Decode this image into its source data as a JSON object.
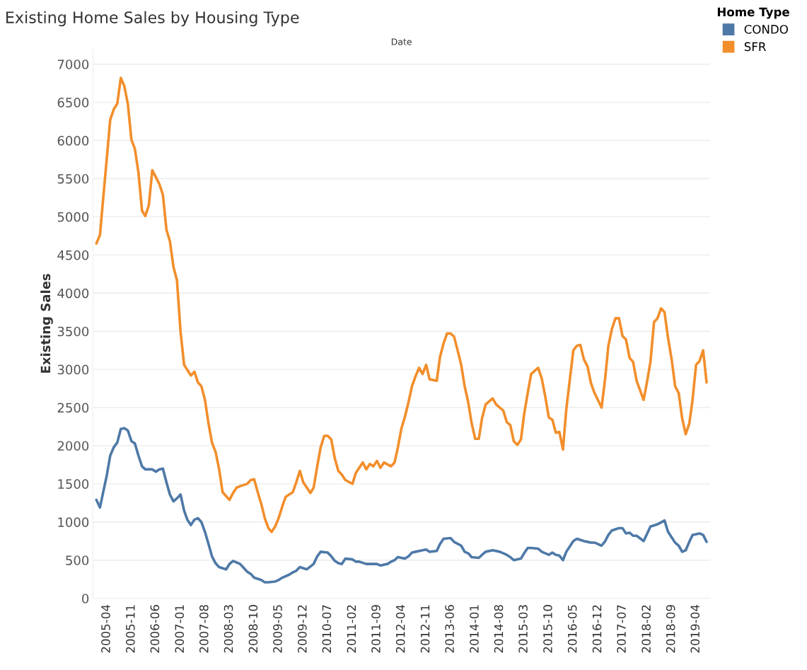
{
  "chart_data": {
    "type": "line",
    "title": "Existing Home Sales by Housing Type",
    "xlabel": "Date",
    "ylabel": "Existing Sales",
    "legend_title": "Home Type",
    "legend": "top right",
    "grid": "y",
    "marker": "none",
    "line_style": "solid",
    "ylim": [
      0,
      7200
    ],
    "yticks": [
      0,
      500,
      1000,
      1500,
      2000,
      2500,
      3000,
      3500,
      4000,
      4500,
      5000,
      5500,
      6000,
      6500,
      7000
    ],
    "xlim": [
      "2004-12",
      "2019-08"
    ],
    "xticks": [
      "2005-04",
      "2005-11",
      "2006-06",
      "2007-01",
      "2007-08",
      "2008-03",
      "2008-10",
      "2009-05",
      "2009-12",
      "2010-07",
      "2011-02",
      "2011-09",
      "2012-04",
      "2012-11",
      "2013-06",
      "2014-01",
      "2014-08",
      "2015-03",
      "2015-10",
      "2016-05",
      "2016-12",
      "2017-07",
      "2018-02",
      "2018-09",
      "2019-04"
    ],
    "series": [
      {
        "name": "CONDO",
        "color": "#4e79a7",
        "x": [
          "2005-01",
          "2005-02",
          "2005-03",
          "2005-04",
          "2005-05",
          "2005-06",
          "2005-07",
          "2005-08",
          "2005-09",
          "2005-10",
          "2005-11",
          "2005-12",
          "2006-01",
          "2006-02",
          "2006-03",
          "2006-05",
          "2006-06",
          "2006-07",
          "2006-08",
          "2006-09",
          "2006-10",
          "2006-11",
          "2006-12",
          "2007-01",
          "2007-02",
          "2007-03",
          "2007-04",
          "2007-05",
          "2007-06",
          "2007-07",
          "2007-08",
          "2007-09",
          "2007-10",
          "2007-11",
          "2007-12",
          "2008-02",
          "2008-03",
          "2008-04",
          "2008-06",
          "2008-07",
          "2008-08",
          "2008-09",
          "2008-10",
          "2008-12",
          "2009-01",
          "2009-02",
          "2009-04",
          "2009-05",
          "2009-06",
          "2009-08",
          "2009-09",
          "2009-10",
          "2009-11",
          "2010-01",
          "2010-03",
          "2010-04",
          "2010-05",
          "2010-07",
          "2010-08",
          "2010-09",
          "2010-10",
          "2010-11",
          "2010-12",
          "2011-02",
          "2011-03",
          "2011-04",
          "2011-06",
          "2011-08",
          "2011-09",
          "2011-10",
          "2011-12",
          "2012-01",
          "2012-02",
          "2012-03",
          "2012-05",
          "2012-06",
          "2012-07",
          "2012-08",
          "2012-10",
          "2012-11",
          "2012-12",
          "2013-02",
          "2013-03",
          "2013-04",
          "2013-06",
          "2013-07",
          "2013-09",
          "2013-10",
          "2013-11",
          "2013-12",
          "2014-02",
          "2014-03",
          "2014-04",
          "2014-06",
          "2014-08",
          "2014-10",
          "2014-11",
          "2014-12",
          "2015-02",
          "2015-03",
          "2015-04",
          "2015-05",
          "2015-07",
          "2015-08",
          "2015-10",
          "2015-11",
          "2015-12",
          "2016-01",
          "2016-02",
          "2016-03",
          "2016-05",
          "2016-06",
          "2016-08",
          "2016-09",
          "2016-10",
          "2016-11",
          "2017-01",
          "2017-02",
          "2017-03",
          "2017-04",
          "2017-06",
          "2017-07",
          "2017-08",
          "2017-09",
          "2017-10",
          "2017-11",
          "2018-01",
          "2018-02",
          "2018-03",
          "2018-05",
          "2018-07",
          "2018-08",
          "2018-10",
          "2018-11",
          "2018-12",
          "2019-01",
          "2019-02",
          "2019-03",
          "2019-05",
          "2019-06",
          "2019-07"
        ],
        "values": [
          1290,
          1190,
          1390,
          1610,
          1870,
          1980,
          2040,
          2220,
          2230,
          2200,
          2060,
          2030,
          1870,
          1730,
          1690,
          1690,
          1660,
          1690,
          1700,
          1520,
          1360,
          1270,
          1310,
          1360,
          1150,
          1030,
          960,
          1030,
          1050,
          1000,
          870,
          710,
          550,
          460,
          410,
          380,
          450,
          490,
          450,
          400,
          350,
          320,
          270,
          240,
          210,
          210,
          220,
          240,
          270,
          310,
          340,
          360,
          410,
          380,
          450,
          550,
          610,
          600,
          550,
          490,
          460,
          450,
          520,
          510,
          480,
          480,
          450,
          450,
          450,
          430,
          450,
          480,
          500,
          540,
          520,
          550,
          600,
          610,
          630,
          640,
          610,
          620,
          710,
          780,
          790,
          740,
          690,
          610,
          590,
          540,
          530,
          570,
          610,
          630,
          610,
          570,
          540,
          500,
          520,
          590,
          660,
          660,
          650,
          610,
          570,
          600,
          570,
          560,
          500,
          610,
          750,
          780,
          750,
          740,
          730,
          730,
          690,
          750,
          830,
          890,
          920,
          920,
          850,
          860,
          820,
          820,
          750,
          850,
          940,
          970,
          1020,
          870,
          730,
          690,
          610,
          630,
          740,
          830,
          850,
          830,
          740
        ]
      },
      {
        "name": "SFR",
        "color": "#f28e2b",
        "x": [
          "2005-01",
          "2005-02",
          "2005-03",
          "2005-04",
          "2005-05",
          "2005-06",
          "2005-07",
          "2005-08",
          "2005-09",
          "2005-10",
          "2005-11",
          "2005-12",
          "2006-01",
          "2006-02",
          "2006-03",
          "2006-04",
          "2006-05",
          "2006-06",
          "2006-07",
          "2006-08",
          "2006-09",
          "2006-10",
          "2006-11",
          "2006-12",
          "2007-01",
          "2007-02",
          "2007-04",
          "2007-05",
          "2007-06",
          "2007-07",
          "2007-08",
          "2007-09",
          "2007-10",
          "2007-11",
          "2007-12",
          "2008-01",
          "2008-03",
          "2008-04",
          "2008-05",
          "2008-06",
          "2008-08",
          "2008-09",
          "2008-10",
          "2008-11",
          "2008-12",
          "2009-01",
          "2009-02",
          "2009-03",
          "2009-04",
          "2009-05",
          "2009-06",
          "2009-07",
          "2009-09",
          "2009-10",
          "2009-11",
          "2009-12",
          "2010-02",
          "2010-03",
          "2010-04",
          "2010-05",
          "2010-06",
          "2010-07",
          "2010-08",
          "2010-09",
          "2010-10",
          "2010-11",
          "2010-12",
          "2011-02",
          "2011-03",
          "2011-05",
          "2011-06",
          "2011-07",
          "2011-08",
          "2011-09",
          "2011-10",
          "2011-11",
          "2012-01",
          "2012-02",
          "2012-03",
          "2012-04",
          "2012-05",
          "2012-06",
          "2012-07",
          "2012-08",
          "2012-09",
          "2012-10",
          "2012-11",
          "2012-12",
          "2013-02",
          "2013-03",
          "2013-04",
          "2013-05",
          "2013-06",
          "2013-07",
          "2013-08",
          "2013-09",
          "2013-10",
          "2013-11",
          "2013-12",
          "2014-01",
          "2014-02",
          "2014-03",
          "2014-04",
          "2014-06",
          "2014-07",
          "2014-09",
          "2014-10",
          "2014-11",
          "2014-12",
          "2015-01",
          "2015-02",
          "2015-03",
          "2015-04",
          "2015-05",
          "2015-07",
          "2015-08",
          "2015-09",
          "2015-10",
          "2015-11",
          "2015-12",
          "2016-01",
          "2016-02",
          "2016-03",
          "2016-05",
          "2016-06",
          "2016-07",
          "2016-08",
          "2016-09",
          "2016-10",
          "2016-11",
          "2017-01",
          "2017-02",
          "2017-03",
          "2017-04",
          "2017-05",
          "2017-06",
          "2017-07",
          "2017-08",
          "2017-09",
          "2017-10",
          "2017-11",
          "2018-01",
          "2018-02",
          "2018-03",
          "2018-04",
          "2018-05",
          "2018-06",
          "2018-07",
          "2018-08",
          "2018-09",
          "2018-10",
          "2018-11",
          "2018-12",
          "2019-01",
          "2019-02",
          "2019-03",
          "2019-04",
          "2019-05",
          "2019-06",
          "2019-07"
        ],
        "values": [
          4650,
          4760,
          5240,
          5760,
          6270,
          6410,
          6480,
          6820,
          6710,
          6480,
          6010,
          5890,
          5580,
          5080,
          5010,
          5150,
          5610,
          5520,
          5430,
          5290,
          4830,
          4680,
          4340,
          4170,
          3500,
          3060,
          2920,
          2970,
          2830,
          2780,
          2600,
          2290,
          2040,
          1920,
          1700,
          1390,
          1290,
          1380,
          1450,
          1470,
          1500,
          1550,
          1560,
          1390,
          1240,
          1050,
          920,
          870,
          940,
          1050,
          1200,
          1330,
          1390,
          1520,
          1670,
          1520,
          1380,
          1450,
          1730,
          1980,
          2130,
          2130,
          2080,
          1830,
          1670,
          1620,
          1550,
          1500,
          1640,
          1780,
          1690,
          1760,
          1730,
          1800,
          1710,
          1780,
          1730,
          1780,
          1980,
          2230,
          2380,
          2570,
          2780,
          2910,
          3020,
          2940,
          3060,
          2870,
          2850,
          3160,
          3340,
          3470,
          3470,
          3430,
          3250,
          3060,
          2780,
          2570,
          2290,
          2090,
          2090,
          2360,
          2540,
          2620,
          2540,
          2460,
          2310,
          2270,
          2060,
          2010,
          2080,
          2410,
          2690,
          2940,
          3020,
          2880,
          2640,
          2370,
          2340,
          2170,
          2180,
          1950,
          2480,
          3250,
          3310,
          3320,
          3130,
          3040,
          2820,
          2690,
          2500,
          2880,
          3310,
          3530,
          3670,
          3670,
          3440,
          3390,
          3150,
          3100,
          2850,
          2600,
          2850,
          3100,
          3620,
          3670,
          3800,
          3750,
          3410,
          3130,
          2780,
          2690,
          2360,
          2150,
          2290,
          2600,
          3060,
          3110,
          3250,
          2830
        ]
      }
    ]
  }
}
